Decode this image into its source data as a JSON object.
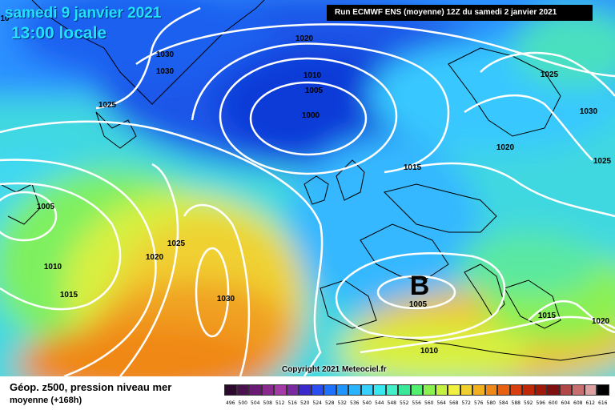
{
  "header": {
    "date": "samedi 9 janvier 2021",
    "local_time": "13:00 locale",
    "run_info": "Run ECMWF ENS (moyenne) 12Z du samedi 2 janvier 2021"
  },
  "map": {
    "pressure_labels": [
      "1020",
      "1030",
      "1030",
      "1025",
      "1010",
      "1005",
      "1000",
      "1025",
      "1030",
      "1020",
      "1025",
      "1015",
      "1005",
      "1025",
      "1020",
      "1010",
      "1015",
      "1030",
      "1005",
      "1015",
      "1020",
      "1010",
      "10"
    ],
    "low_marker": "B",
    "copyright": "Copyright 2021 Meteociel.fr"
  },
  "legend": {
    "title": "Géop. z500, pression niveau mer",
    "subtitle": "moyenne   (+168h)",
    "ticks": [
      "496",
      "500",
      "504",
      "508",
      "512",
      "516",
      "520",
      "524",
      "528",
      "532",
      "536",
      "540",
      "544",
      "548",
      "552",
      "556",
      "560",
      "564",
      "568",
      "572",
      "576",
      "580",
      "584",
      "588",
      "592",
      "596",
      "600",
      "604",
      "608",
      "612",
      "616"
    ],
    "colors": [
      "#2b0a2e",
      "#4b1050",
      "#6a1a74",
      "#8a2a8e",
      "#a33aa6",
      "#7a2aa0",
      "#3a2acc",
      "#2a4ef0",
      "#1e72ff",
      "#1e96ff",
      "#2ab4ff",
      "#38d0ff",
      "#3ae8f0",
      "#40f0c8",
      "#3ae89a",
      "#52f070",
      "#8cf050",
      "#c4f040",
      "#f0f040",
      "#f0d030",
      "#f0b020",
      "#f08818",
      "#e86010",
      "#d84010",
      "#c02808",
      "#a01808",
      "#801010",
      "#b04848",
      "#c87070",
      "#dca0a0",
      "#000000"
    ]
  }
}
